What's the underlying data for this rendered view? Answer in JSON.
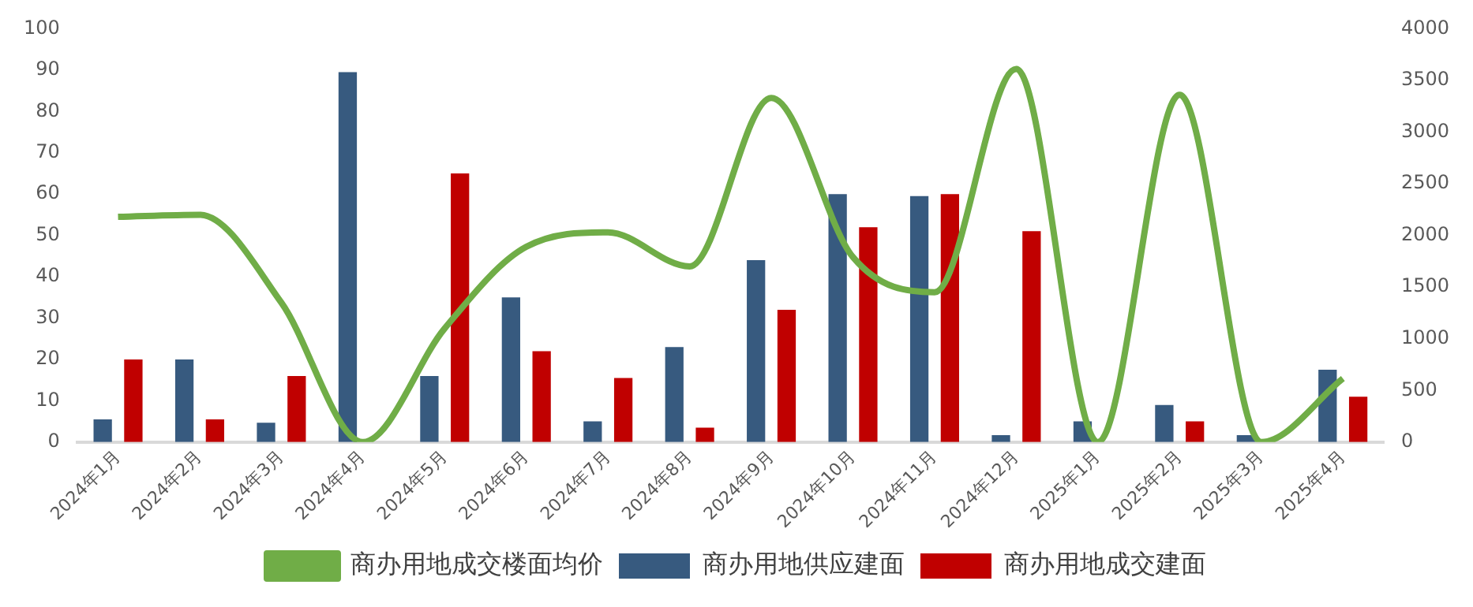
{
  "chart_data": {
    "type": "bar",
    "categories": [
      "2024年1月",
      "2024年2月",
      "2024年3月",
      "2024年4月",
      "2024年5月",
      "2024年6月",
      "2024年7月",
      "2024年8月",
      "2024年9月",
      "2024年10月",
      "2024年11月",
      "2024年12月",
      "2025年1月",
      "2025年2月",
      "2025年3月",
      "2025年4月"
    ],
    "series": [
      {
        "name": "商办用地供应建面",
        "color": "#375a7f",
        "values": [
          5.5,
          20,
          4.7,
          89.5,
          16,
          35,
          5,
          23,
          44,
          60,
          59.5,
          1.7,
          5,
          9,
          1.7,
          17.5
        ]
      },
      {
        "name": "商办用地成交建面",
        "color": "#c00000",
        "values": [
          20,
          5.5,
          16,
          0,
          65,
          22,
          15.5,
          3.5,
          32,
          52,
          60,
          51,
          0,
          5,
          0,
          11
        ]
      },
      {
        "name": "商办用地成交楼面均价",
        "type": "line",
        "axis": "y2",
        "color": "#70ad47",
        "values": [
          2180,
          2200,
          1350,
          0,
          1100,
          1890,
          2030,
          1700,
          3330,
          1790,
          1450,
          3610,
          0,
          3360,
          0,
          615
        ]
      }
    ],
    "ylim": [
      0,
      100
    ],
    "yticks": [
      0,
      10,
      20,
      30,
      40,
      50,
      60,
      70,
      80,
      90,
      100
    ],
    "y2lim": [
      0,
      4000
    ],
    "y2ticks": [
      0,
      500,
      1000,
      1500,
      2000,
      2500,
      3000,
      3500,
      4000
    ],
    "grid": false,
    "legend": "bottom",
    "marker": "none",
    "line_style": "solid"
  }
}
